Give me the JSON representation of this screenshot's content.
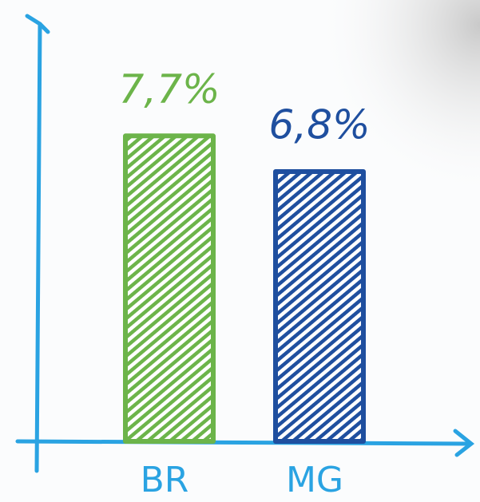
{
  "chart_data": {
    "type": "bar",
    "categories": [
      "BR",
      "MG"
    ],
    "values": [
      7.7,
      6.8
    ],
    "value_labels": [
      "7,7%",
      "6,8%"
    ],
    "colors": [
      "#6cb44a",
      "#1f4f9f"
    ],
    "ylim": [
      0,
      10
    ]
  }
}
